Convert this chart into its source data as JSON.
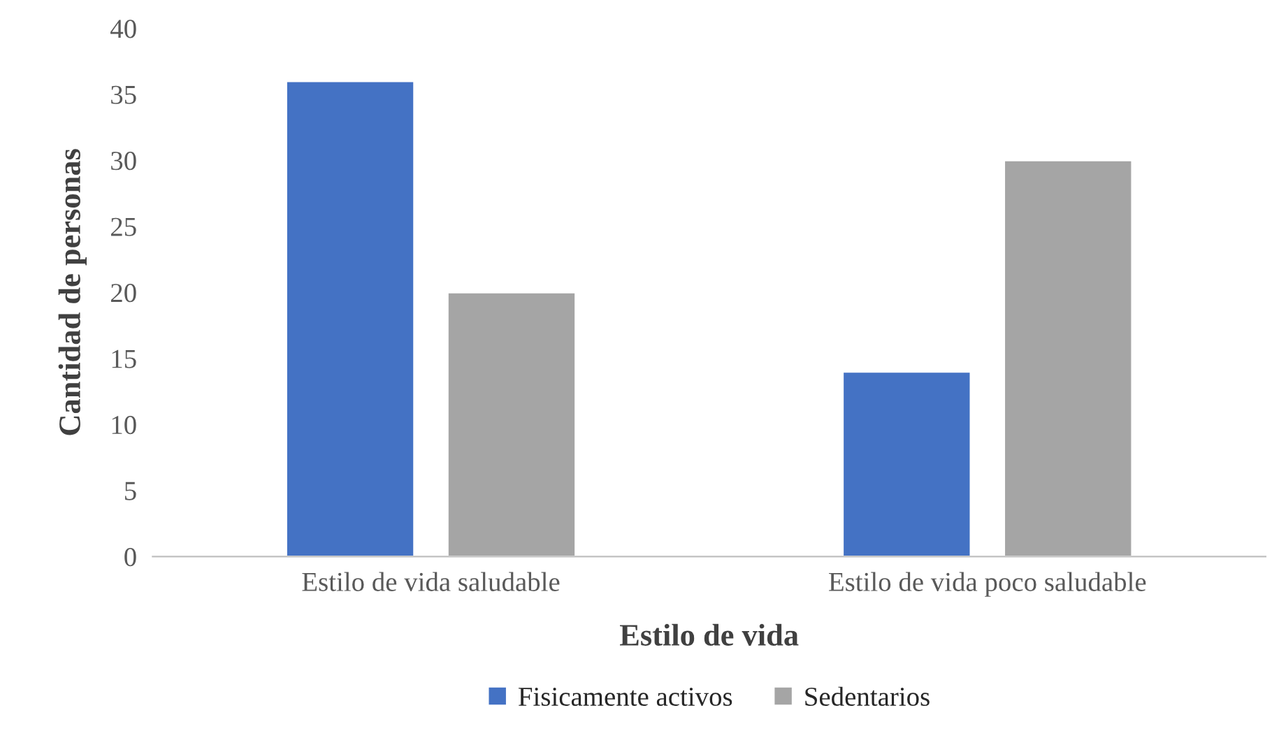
{
  "chart_data": {
    "type": "bar",
    "xlabel": "Estilo de vida",
    "ylabel": "Cantidad de personas",
    "categories": [
      "Estilo de vida saludable",
      "Estilo de vida poco saludable"
    ],
    "series": [
      {
        "name": "Fisicamente activos",
        "color": "#4472c4",
        "values": [
          36,
          14
        ]
      },
      {
        "name": "Sedentarios",
        "color": "#a5a5a5",
        "values": [
          20,
          30
        ]
      }
    ],
    "ylim": [
      0,
      40
    ],
    "yticks": [
      0,
      5,
      10,
      15,
      20,
      25,
      30,
      35,
      40
    ],
    "grid": false,
    "legend": "bottom"
  }
}
